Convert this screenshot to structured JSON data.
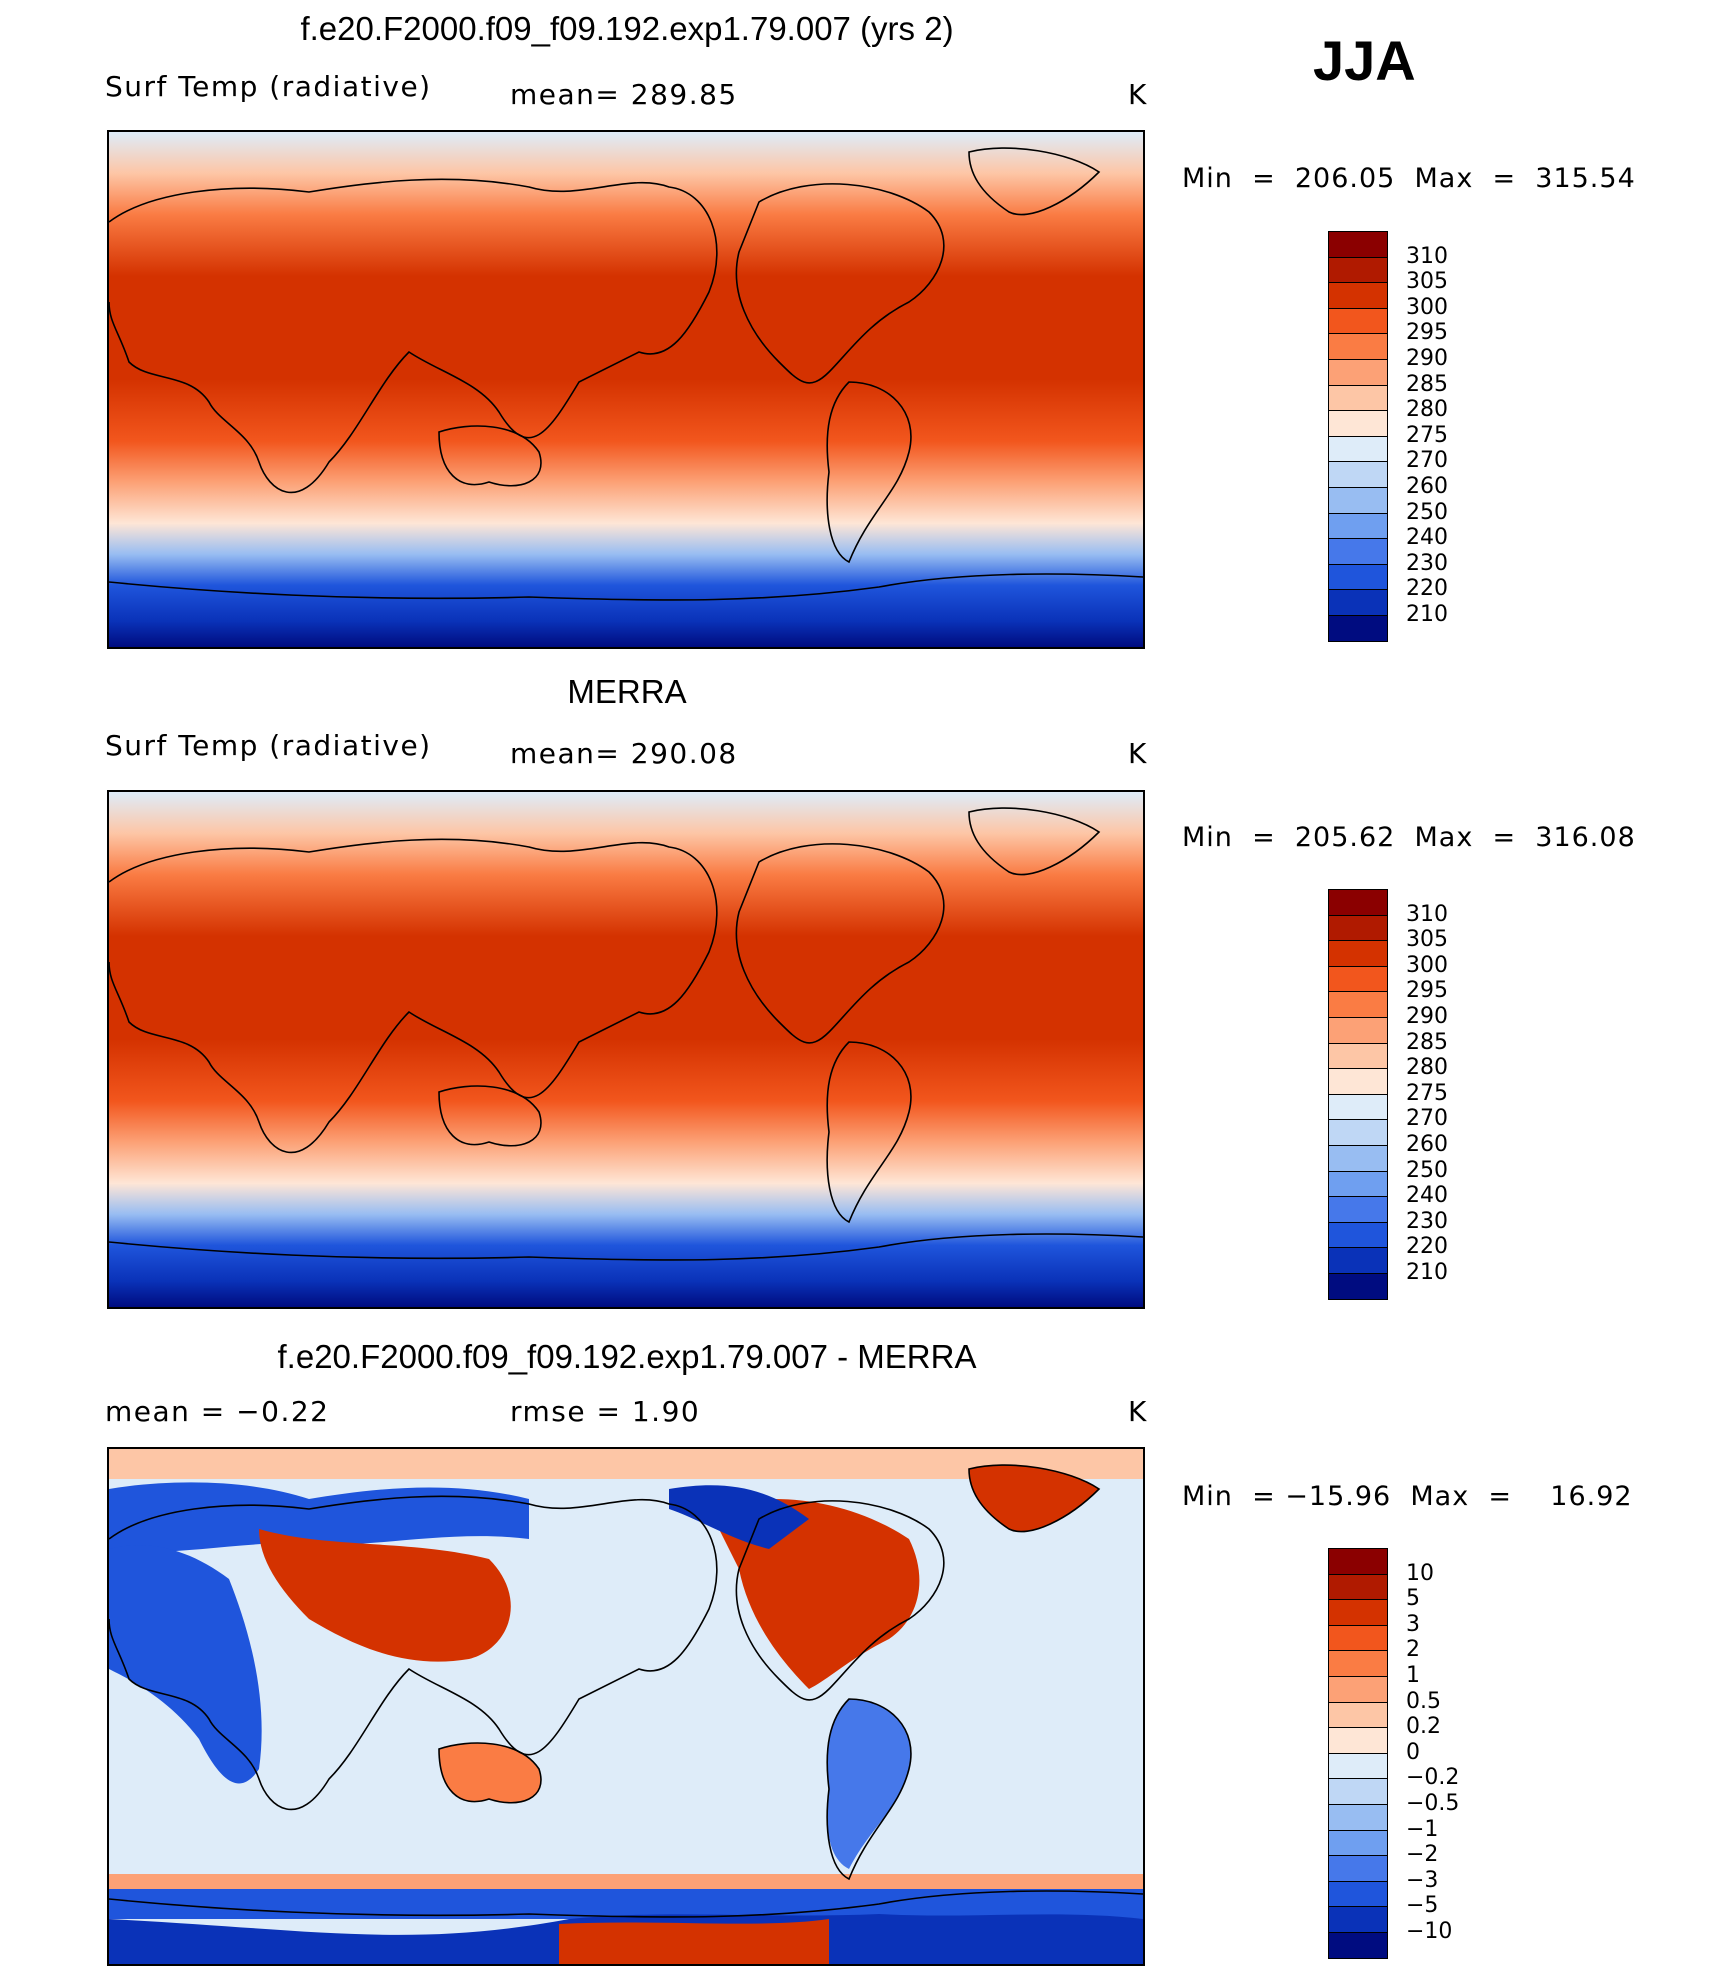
{
  "season": "JJA",
  "panels": [
    {
      "title": "f.e20.F2000.f09_f09.192.exp1.79.007 (yrs 2)",
      "left_label": "Surf Temp (radiative)",
      "mid_label": "mean=  289.85",
      "units": "K",
      "minmax": "Min  =  206.05  Max  =  315.54",
      "kind": "abs"
    },
    {
      "title": "MERRA",
      "left_label": "Surf Temp (radiative)",
      "mid_label": "mean=  290.08",
      "units": "K",
      "minmax": "Min  =  205.62  Max  =  316.08",
      "kind": "abs"
    },
    {
      "title": "f.e20.F2000.f09_f09.192.exp1.79.007 - MERRA",
      "left_label": "mean  =    −0.22",
      "mid_label": "rmse  =     1.90",
      "units": "K",
      "minmax": "Min  = −15.96  Max  =    16.92",
      "kind": "diff"
    }
  ],
  "colorbars": {
    "abs": {
      "labels": [
        "310",
        "305",
        "300",
        "295",
        "290",
        "285",
        "280",
        "275",
        "270",
        "260",
        "250",
        "240",
        "230",
        "220",
        "210"
      ],
      "colors": [
        "#8b0000",
        "#b01a00",
        "#d43200",
        "#f2561d",
        "#fa7c44",
        "#fca176",
        "#fdc6a6",
        "#fee6d6",
        "#deecf9",
        "#bfd7f5",
        "#98bdf2",
        "#6f9ff0",
        "#4678ea",
        "#1f55dc",
        "#0a32b8",
        "#000c80"
      ]
    },
    "diff": {
      "labels": [
        "10",
        "5",
        "3",
        "2",
        "1",
        "0.5",
        "0.2",
        "0",
        "−0.2",
        "−0.5",
        "−1",
        "−2",
        "−3",
        "−5",
        "−10"
      ],
      "colors": [
        "#8b0000",
        "#b01a00",
        "#d43200",
        "#f2561d",
        "#fa7c44",
        "#fca176",
        "#fdc6a6",
        "#fee6d6",
        "#deecf9",
        "#bfd7f5",
        "#98bdf2",
        "#6f9ff0",
        "#4678ea",
        "#1f55dc",
        "#0a32b8",
        "#000c80"
      ]
    }
  }
}
